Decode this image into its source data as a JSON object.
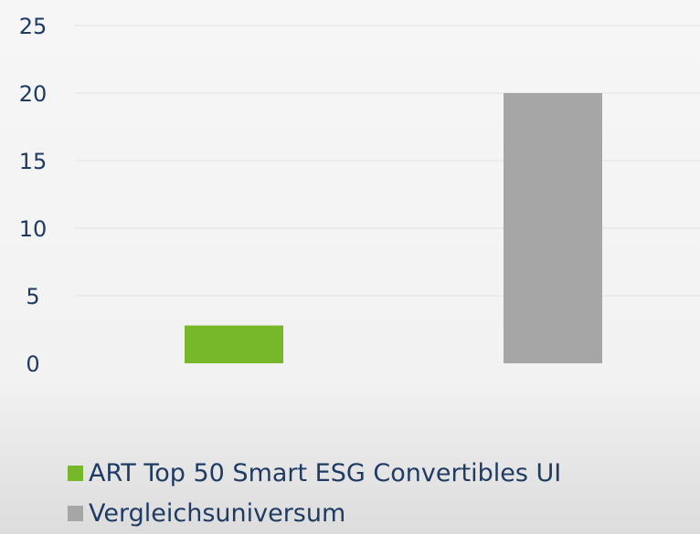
{
  "chart_data": {
    "type": "bar",
    "categories": [
      "ART Top 50 Smart ESG Convertibles UI",
      "Vergleichsuniversum"
    ],
    "values": [
      2.8,
      20
    ],
    "colors": [
      "#76b82a",
      "#a6a6a6"
    ],
    "yticks": [
      "0",
      "5",
      "10",
      "15",
      "20",
      "25"
    ],
    "ylim": [
      0,
      25
    ],
    "grid": true,
    "legend_position": "bottom",
    "legend": [
      {
        "label": "ART Top 50 Smart ESG Convertibles UI",
        "color": "#76b82a"
      },
      {
        "label": "Vergleichsuniversum",
        "color": "#a6a6a6"
      }
    ]
  }
}
